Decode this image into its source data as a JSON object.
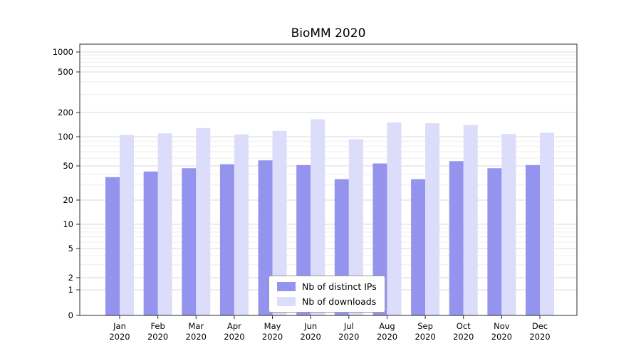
{
  "chart_data": {
    "type": "bar",
    "title": "BioMM 2020",
    "categories": [
      "Jan\n2020",
      "Feb\n2020",
      "Mar\n2020",
      "Apr\n2020",
      "May\n2020",
      "Jun\n2020",
      "Jul\n2020",
      "Aug\n2020",
      "Sep\n2020",
      "Oct\n2020",
      "Nov\n2020",
      "Dec\n2020"
    ],
    "series": [
      {
        "name": "Nb of distinct IPs",
        "color": "#9494ef",
        "values": [
          37,
          43,
          47,
          52,
          57,
          51,
          35,
          53,
          35,
          56,
          47,
          51
        ]
      },
      {
        "name": "Nb of downloads",
        "color": "#dcdcfb",
        "values": [
          105,
          110,
          128,
          107,
          118,
          165,
          94,
          150,
          147,
          140,
          108,
          112
        ]
      }
    ],
    "yticks": [
      0,
      1,
      2,
      5,
      10,
      20,
      50,
      100,
      200,
      500,
      1000
    ],
    "ylim": [
      0,
      1000
    ],
    "yscale": "symlog",
    "xlabel": "",
    "ylabel": "",
    "grid": "horizontal",
    "legend_position": "lower center"
  }
}
